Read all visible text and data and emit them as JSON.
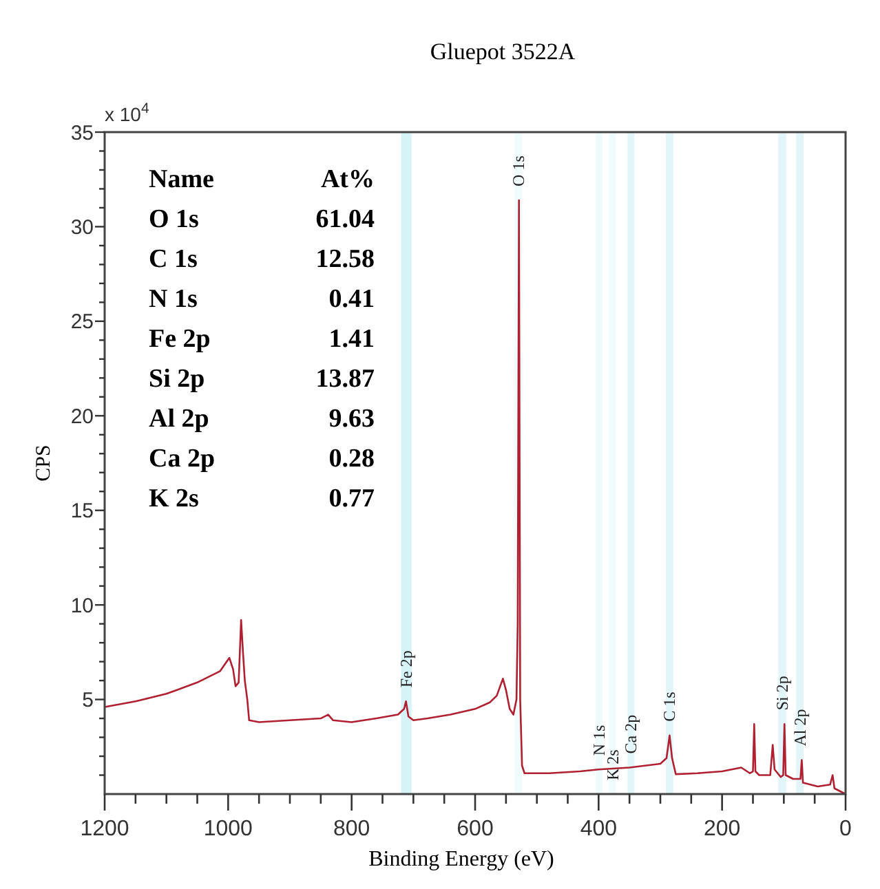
{
  "chart_data": {
    "type": "line",
    "title": "Gluepot 3522A",
    "xlabel": "Binding Energy (eV)",
    "ylabel": "CPS",
    "annotations": [
      "x 10$^{4}$",
      "Name",
      "At%",
      "O 1s",
      "61.04",
      "C 1s",
      "12.58",
      "N 1s",
      "0.41",
      "Fe  2p",
      "1.41",
      "Si 2p",
      "13.87",
      "Al 2p",
      "9.63",
      "Ca 2p",
      "0.28",
      "K 2s",
      "0.77"
    ],
    "x": [
      1200,
      1150,
      1100,
      1050,
      1013,
      998,
      992,
      988,
      983,
      979,
      976,
      973,
      969,
      966,
      950,
      900,
      850,
      838,
      830,
      800,
      760,
      725,
      715,
      712,
      708,
      700,
      677,
      640,
      600,
      576,
      565,
      555,
      550,
      544,
      538,
      533,
      531,
      529,
      527,
      524,
      520,
      480,
      430,
      400,
      350,
      300,
      290,
      285,
      281,
      275,
      240,
      200,
      169,
      155,
      150,
      148,
      146,
      140,
      122,
      118,
      115,
      105,
      101,
      99,
      97,
      85,
      73,
      71,
      69,
      45,
      25,
      21,
      18,
      0
    ],
    "series": [
      {
        "color": "#b02030",
        "values": [
          4.6,
          4.9,
          5.3,
          5.9,
          6.5,
          7.2,
          6.6,
          5.7,
          5.9,
          9.2,
          7.5,
          6.0,
          5.0,
          3.9,
          3.8,
          3.9,
          4.0,
          4.2,
          3.9,
          3.8,
          4.0,
          4.2,
          4.5,
          4.9,
          4.1,
          3.9,
          4.0,
          4.2,
          4.5,
          4.85,
          5.2,
          6.1,
          5.5,
          4.5,
          4.2,
          5.0,
          9.0,
          31.4,
          5.0,
          1.5,
          1.1,
          1.1,
          1.2,
          1.3,
          1.4,
          1.6,
          1.9,
          3.1,
          1.9,
          1.05,
          1.1,
          1.2,
          1.4,
          1.1,
          1.2,
          3.7,
          1.2,
          1.0,
          1.0,
          2.6,
          1.3,
          0.9,
          1.0,
          3.7,
          1.0,
          0.8,
          0.8,
          1.8,
          0.6,
          0.4,
          0.5,
          1.0,
          0.3,
          0
        ]
      }
    ],
    "xlim": [
      1200,
      0
    ],
    "xticks": [
      1200,
      {
        "value": 1150,
        "label": null
      },
      {
        "value": 1100,
        "label": null
      },
      {
        "value": 1050,
        "label": null
      },
      1000,
      {
        "value": 950,
        "label": null
      },
      {
        "value": 900,
        "label": null
      },
      {
        "value": 850,
        "label": null
      },
      800,
      {
        "value": 750,
        "label": null
      },
      {
        "value": 700,
        "label": null
      },
      {
        "value": 650,
        "label": null
      },
      600,
      {
        "value": 550,
        "label": null
      },
      {
        "value": 500,
        "label": null
      },
      {
        "value": 450,
        "label": null
      },
      400,
      {
        "value": 350,
        "label": null
      },
      {
        "value": 300,
        "label": null
      },
      {
        "value": 250,
        "label": null
      },
      200,
      {
        "value": 150,
        "label": null
      },
      {
        "value": 100,
        "label": null
      },
      {
        "value": 50,
        "label": null
      },
      0
    ],
    "ylim": [
      0,
      35
    ],
    "yticks": [
      {
        "value": 1,
        "label": null
      },
      {
        "value": 2,
        "label": null
      },
      {
        "value": 3,
        "label": null
      },
      {
        "value": 4,
        "label": null
      },
      5,
      {
        "value": 6,
        "label": null
      },
      {
        "value": 7,
        "label": null
      },
      {
        "value": 8,
        "label": null
      },
      {
        "value": 9,
        "label": null
      },
      10,
      {
        "value": 11,
        "label": null
      },
      {
        "value": 12,
        "label": null
      },
      {
        "value": 13,
        "label": null
      },
      {
        "value": 14,
        "label": null
      },
      15,
      {
        "value": 16,
        "label": null
      },
      {
        "value": 17,
        "label": null
      },
      {
        "value": 18,
        "label": null
      },
      {
        "value": 19,
        "label": null
      },
      20,
      {
        "value": 21,
        "label": null
      },
      {
        "value": 22,
        "label": null
      },
      {
        "value": 23,
        "label": null
      },
      {
        "value": 24,
        "label": null
      },
      25,
      {
        "value": 26,
        "label": null
      },
      {
        "value": 27,
        "label": null
      },
      {
        "value": 28,
        "label": null
      },
      {
        "value": 29,
        "label": null
      },
      30,
      {
        "value": 31,
        "label": null
      },
      {
        "value": 32,
        "label": null
      },
      {
        "value": 33,
        "label": null
      },
      {
        "value": 34,
        "label": null
      },
      35
    ],
    "bands": [
      {
        "axis": "x",
        "from": 703,
        "to": 720,
        "label": "Fe 2p",
        "color": "#d6f4f8"
      },
      {
        "axis": "x",
        "from": 524,
        "to": 536,
        "label": "O 1s",
        "color": "#f0fbfc"
      },
      {
        "axis": "x",
        "from": 394,
        "to": 405,
        "label": "N 1s",
        "color": "#eefafc"
      },
      {
        "axis": "x",
        "from": 372,
        "to": 383,
        "label": "K 2s",
        "color": "#eefafc"
      },
      {
        "axis": "x",
        "from": 342,
        "to": 353,
        "label": "Ca 2p",
        "color": "#e2f6f9"
      },
      {
        "axis": "x",
        "from": 279,
        "to": 291,
        "label": "C 1s",
        "color": "#e2f6f9"
      },
      {
        "axis": "x",
        "from": 96,
        "to": 109,
        "label": "Si 2p",
        "color": "#e2f6f9"
      },
      {
        "axis": "x",
        "from": 68,
        "to": 80,
        "label": "Al 2p",
        "color": "#e2f6f9"
      }
    ],
    "grid": false
  }
}
